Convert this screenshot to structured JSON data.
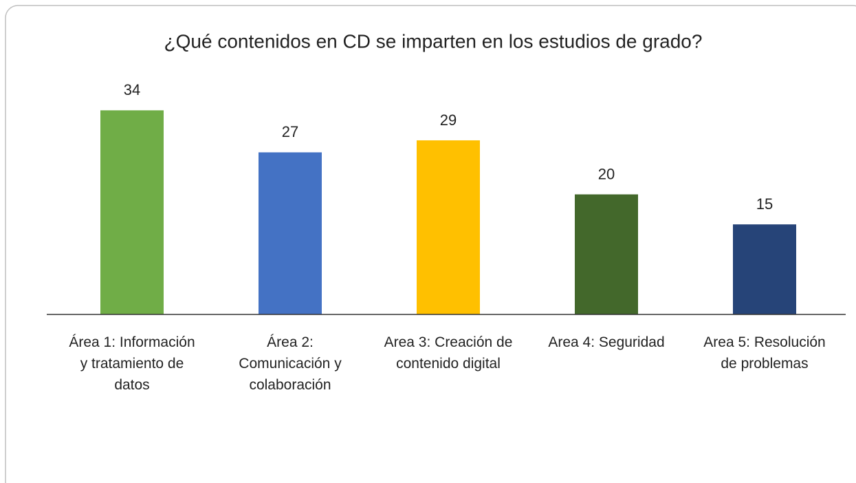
{
  "chart_data": {
    "type": "bar",
    "title": "¿Qué contenidos en CD se imparten en los estudios de grado?",
    "categories": [
      "Área 1: Información y tratamiento de datos",
      "Área 2: Comunicación y colaboración",
      "Area 3: Creación de contenido digital",
      "Area 4: Seguridad",
      "Area 5: Resolución de problemas"
    ],
    "values": [
      34,
      27,
      29,
      20,
      15
    ],
    "colors": [
      "#70ad47",
      "#4472c4",
      "#ffc000",
      "#43682b",
      "#264478"
    ],
    "ylim": [
      0,
      40
    ]
  }
}
